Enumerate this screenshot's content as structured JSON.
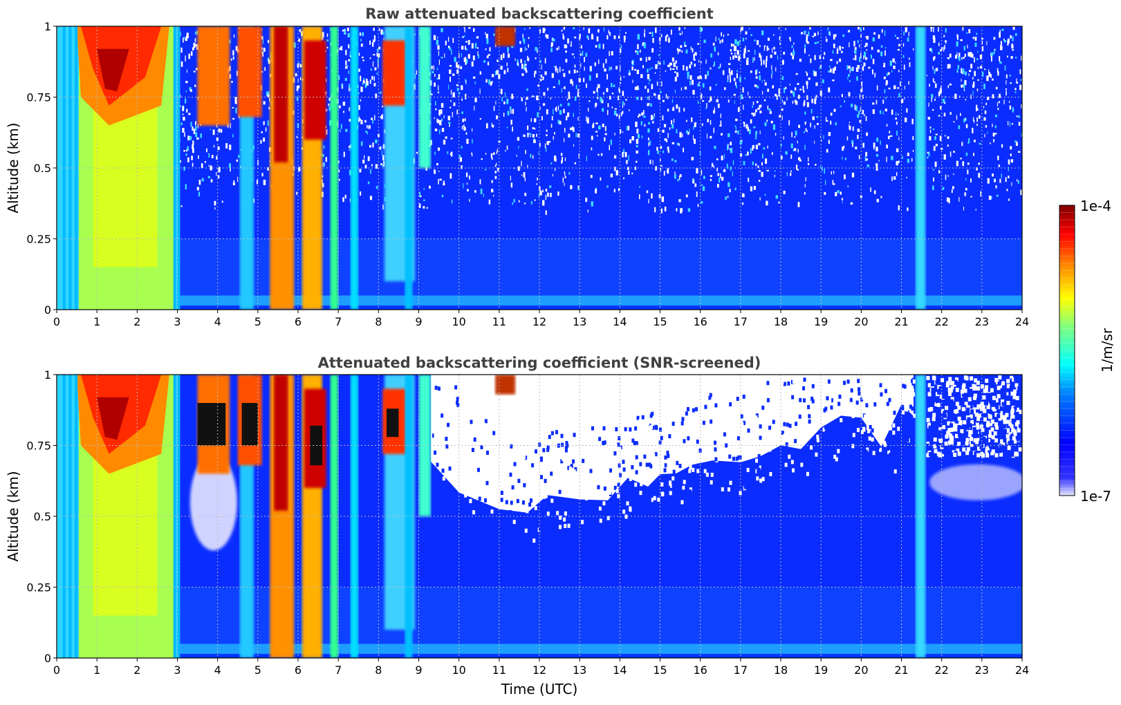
{
  "chart_data": [
    {
      "type": "heatmap",
      "title": "Raw attenuated backscattering coefficient",
      "xlabel": "",
      "ylabel": "Altitude (km)",
      "xlim": [
        0,
        24
      ],
      "ylim": [
        0,
        1
      ],
      "x_ticks": [
        "0",
        "1",
        "2",
        "3",
        "4",
        "5",
        "6",
        "7",
        "8",
        "9",
        "10",
        "11",
        "12",
        "13",
        "14",
        "15",
        "16",
        "17",
        "18",
        "19",
        "20",
        "21",
        "22",
        "23",
        "24"
      ],
      "y_ticks": [
        "0",
        "0.25",
        "0.5",
        "0.75",
        "1"
      ],
      "grid": true,
      "colorscale": "jet",
      "clim": [
        1e-07,
        0.0001
      ],
      "features": [
        {
          "name": "low cloud",
          "x": [
            0.05,
            3.05
          ],
          "y": [
            0,
            1
          ],
          "level": "high"
        },
        {
          "name": "cloud",
          "x": [
            3.5,
            4.3
          ],
          "y": [
            0.6,
            1
          ],
          "level": "very high"
        },
        {
          "name": "cloud",
          "x": [
            4.5,
            5.2
          ],
          "y": [
            0.7,
            1
          ],
          "level": "very high"
        },
        {
          "name": "cloud",
          "x": [
            5.2,
            6.8
          ],
          "y": [
            0,
            1
          ],
          "level": "very high"
        },
        {
          "name": "cloud",
          "x": [
            8.0,
            8.95
          ],
          "y": [
            0.1,
            1
          ],
          "level": "very high"
        },
        {
          "name": "cloud",
          "x": [
            10.85,
            11.4
          ],
          "y": [
            0.93,
            1
          ],
          "level": "very high"
        },
        {
          "name": "narrow column",
          "x": [
            21.3,
            21.6
          ],
          "y": [
            0,
            1
          ],
          "level": "medium"
        }
      ]
    },
    {
      "type": "heatmap",
      "title": "Attenuated backscattering coefficient (SNR-screened)",
      "xlabel": "Time (UTC)",
      "ylabel": "Altitude (km)",
      "xlim": [
        0,
        24
      ],
      "ylim": [
        0,
        1
      ],
      "x_ticks": [
        "0",
        "1",
        "2",
        "3",
        "4",
        "5",
        "6",
        "7",
        "8",
        "9",
        "10",
        "11",
        "12",
        "13",
        "14",
        "15",
        "16",
        "17",
        "18",
        "19",
        "20",
        "21",
        "22",
        "23",
        "24"
      ],
      "y_ticks": [
        "0",
        "0.25",
        "0.5",
        "0.75",
        "1"
      ],
      "grid": true,
      "colorscale": "jet",
      "clim": [
        1e-07,
        0.0001
      ],
      "screened_color": "#ffffff",
      "screened_top_km": [
        0.72,
        0.6,
        0.52,
        0.52,
        0.56,
        0.58,
        0.57,
        0.62,
        0.63,
        0.62,
        0.66,
        0.71,
        0.68,
        0.69,
        0.74,
        0.76,
        0.76,
        0.8,
        0.86,
        0.82,
        0.76,
        0.88,
        0.86
      ],
      "screened_top_x": [
        9.3,
        10,
        11,
        11.7,
        12.2,
        13,
        13.7,
        14.2,
        14.7,
        15,
        15.4,
        15.8,
        16.3,
        17,
        17.5,
        18,
        18.5,
        19,
        19.5,
        20,
        20.5,
        21,
        21.3
      ]
    }
  ],
  "colorbar": {
    "max_label": "1e-4",
    "min_label": "1e-7",
    "unit_label": "1/m/sr",
    "stops": [
      "#7f0000",
      "#ff0000",
      "#ff7f00",
      "#ffff00",
      "#7fff7f",
      "#00ffff",
      "#007fff",
      "#0000ff",
      "#e6e6ff"
    ]
  }
}
